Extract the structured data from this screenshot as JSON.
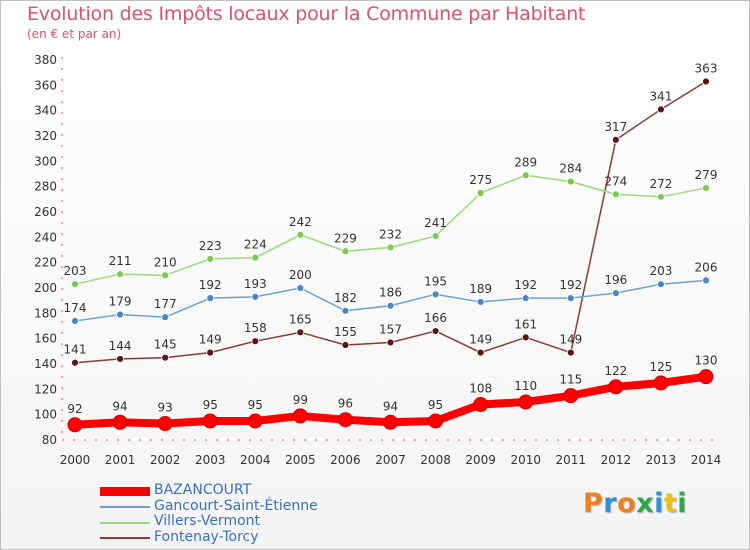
{
  "title": "Evolution des Impôts locaux pour la Commune par Habitant",
  "subtitle": "(en € et par an)",
  "logo": {
    "text": "Proxiti",
    "colors": [
      "#e8821e",
      "#2f8fd8",
      "#e8821e",
      "#2aa84a",
      "#2f8fd8",
      "#e8c01e",
      "#2aa84a"
    ]
  },
  "chart_data": {
    "type": "line",
    "title": "Evolution des Impôts locaux pour la Commune par Habitant",
    "subtitle": "(en € et par an)",
    "x": [
      "2000",
      "2001",
      "2002",
      "2003",
      "2004",
      "2005",
      "2006",
      "2007",
      "2008",
      "2009",
      "2010",
      "2011",
      "2012",
      "2013",
      "2014"
    ],
    "ylim": [
      80,
      380
    ],
    "yticks": [
      80,
      100,
      120,
      140,
      160,
      180,
      200,
      220,
      240,
      260,
      280,
      300,
      320,
      340,
      360,
      380
    ],
    "grid": false,
    "legend_position": "bottom-left",
    "series": [
      {
        "name": "BAZANCOURT",
        "color": "#ff0000",
        "marker_color": "#ff0000",
        "values": [
          92,
          94,
          93,
          95,
          95,
          99,
          96,
          94,
          95,
          108,
          110,
          115,
          122,
          125,
          130
        ]
      },
      {
        "name": "Gancourt-Saint-Étienne",
        "color": "#6fa0cf",
        "marker_color": "#4a86c5",
        "values": [
          174,
          179,
          177,
          192,
          193,
          200,
          182,
          186,
          195,
          189,
          192,
          192,
          196,
          203,
          206
        ]
      },
      {
        "name": "Villers-Vermont",
        "color": "#9bd97a",
        "marker_color": "#7ec850",
        "values": [
          203,
          211,
          210,
          223,
          224,
          242,
          229,
          232,
          241,
          275,
          289,
          284,
          274,
          272,
          279
        ]
      },
      {
        "name": "Fontenay-Torcy",
        "color": "#8a3a3a",
        "marker_color": "#5a1414",
        "values": [
          141,
          144,
          145,
          149,
          158,
          165,
          155,
          157,
          166,
          149,
          161,
          149,
          317,
          341,
          363
        ]
      }
    ]
  }
}
